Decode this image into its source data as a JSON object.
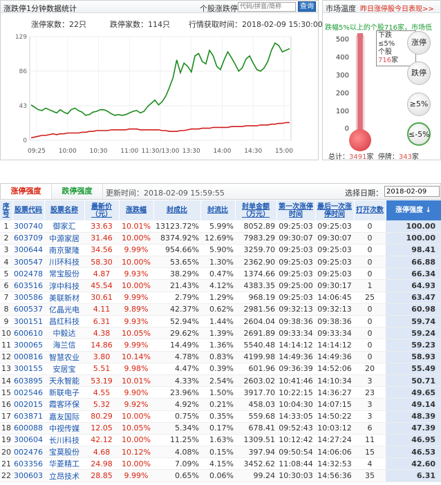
{
  "chart_panel": {
    "title": "涨跌停1分钟数据统计",
    "stock_label": "个股涨跌停",
    "search_placeholder": "代码/拼音/简称",
    "search_button": "查询"
  },
  "chart_data": {
    "type": "line",
    "legend_up_label": "涨停家数：",
    "legend_up_value": "22",
    "legend_up_unit": "只",
    "legend_down_label": "跌停家数：",
    "legend_down_value": "114",
    "legend_down_unit": "只",
    "time_label": "行情获取时间：",
    "time_value": "2018-02-09 15:30:00",
    "y_ticks": [
      "129",
      "86",
      "43",
      "0"
    ],
    "ylim": [
      0,
      129
    ],
    "x_ticks": [
      "09:25",
      "10:00",
      "10:30",
      "11:00",
      "11:30/13:00",
      "13:30",
      "14:00",
      "14:30",
      "15:00"
    ],
    "series": [
      {
        "color": "#1a8a1a",
        "values": [
          44,
          41,
          38,
          37,
          40,
          38,
          36,
          34,
          38,
          35,
          33,
          38,
          40,
          37,
          35,
          31,
          32,
          35,
          36,
          38,
          38,
          36,
          33,
          31,
          32,
          31,
          32,
          34,
          36,
          37,
          34,
          36,
          42,
          46,
          50,
          44,
          48,
          55,
          66,
          78,
          100,
          84,
          96,
          92,
          85,
          105,
          108,
          98,
          95,
          112,
          105,
          92,
          88,
          100,
          110,
          103,
          95,
          86,
          90,
          101,
          105,
          96,
          88,
          86,
          90,
          98,
          112,
          121,
          118,
          110,
          112,
          114
        ]
      },
      {
        "color": "#d11a1a",
        "values": [
          3,
          4,
          5,
          6,
          6,
          7,
          8,
          7,
          8,
          8,
          9,
          9,
          9,
          9,
          10,
          10,
          11,
          11,
          12,
          12,
          12,
          12,
          13,
          13,
          13,
          13,
          13,
          14,
          14,
          14,
          13,
          13,
          13,
          13,
          13,
          13,
          12,
          12,
          11,
          11,
          11,
          12,
          12,
          13,
          14,
          14,
          14,
          15,
          15,
          15,
          16,
          16,
          16,
          16,
          16,
          17,
          17,
          17,
          17,
          18,
          18,
          18,
          18,
          19,
          19,
          19,
          20,
          20,
          21,
          21,
          22,
          22
        ]
      }
    ]
  },
  "temp_panel": {
    "title": "市场温度",
    "link": "昨日涨停股今日表现>>",
    "headline": "跌幅5%以上的个股716家，市场低",
    "ticks": [
      "500",
      "400",
      "300",
      "200",
      "100",
      "0"
    ],
    "fill_value": 716,
    "max_value": 500,
    "callout_l1": "下跌",
    "callout_l2": "≤5%",
    "callout_l3": "个股",
    "callout_num": "716",
    "callout_unit": "家",
    "btn_up": "涨停",
    "btn_down": "跌停",
    "btn_gt5": "≥5%",
    "btn_le5": "≤-5%",
    "total_label": "总计：",
    "total_value": "3491",
    "total_unit": "家",
    "halt_label": "停牌：",
    "halt_value": "343",
    "halt_unit": "家"
  },
  "table_panel": {
    "tab_up": "涨停强度",
    "tab_down": "跌停强度",
    "update_label": "更新时间：2018-02-09 15:59:55",
    "date_label": "选择日期：",
    "date_value": "2018-02-09",
    "headers": [
      "序号",
      "股票代码",
      "股票名称",
      "最新价（元）",
      "涨跌幅",
      "封成比",
      "封流比",
      "封单金额（万元）",
      "第一次涨停时间",
      "最后一次涨停时间",
      "打开次数",
      "涨停强度 ↓"
    ],
    "rows": [
      [
        "1",
        "300740",
        "御家汇",
        "33.63",
        "10.01%",
        "13123.72%",
        "5.99%",
        "8052.89",
        "09:25:03",
        "09:25:03",
        "0",
        "100.00"
      ],
      [
        "2",
        "603709",
        "中源家居",
        "31.46",
        "10.00%",
        "8374.92%",
        "12.69%",
        "7983.29",
        "09:30:07",
        "09:30:07",
        "0",
        "100.00"
      ],
      [
        "3",
        "300644",
        "南京聚隆",
        "34.56",
        "9.99%",
        "954.66%",
        "5.90%",
        "3259.70",
        "09:25:03",
        "09:25:03",
        "0",
        "98.41"
      ],
      [
        "4",
        "300547",
        "川环科技",
        "58.30",
        "10.00%",
        "53.65%",
        "1.30%",
        "2362.90",
        "09:25:03",
        "09:25:03",
        "0",
        "66.88"
      ],
      [
        "5",
        "002478",
        "常宝股份",
        "4.87",
        "9.93%",
        "38.29%",
        "0.47%",
        "1374.66",
        "09:25:03",
        "09:25:03",
        "0",
        "66.34"
      ],
      [
        "6",
        "603516",
        "淳中科技",
        "45.54",
        "10.00%",
        "21.43%",
        "4.12%",
        "4383.35",
        "09:25:00",
        "09:30:17",
        "1",
        "64.93"
      ],
      [
        "7",
        "300586",
        "美联新材",
        "30.61",
        "9.99%",
        "2.79%",
        "1.29%",
        "968.19",
        "09:25:03",
        "14:06:45",
        "25",
        "63.47"
      ],
      [
        "8",
        "600537",
        "亿晶光电",
        "4.11",
        "9.89%",
        "42.37%",
        "0.62%",
        "2981.56",
        "09:32:13",
        "09:32:13",
        "0",
        "60.98"
      ],
      [
        "9",
        "300151",
        "昌红科技",
        "6.31",
        "9.93%",
        "52.94%",
        "1.44%",
        "2604.04",
        "09:38:36",
        "09:38:36",
        "0",
        "59.74"
      ],
      [
        "10",
        "600610",
        "中毅达",
        "4.38",
        "10.05%",
        "29.62%",
        "1.39%",
        "2691.89",
        "09:33:34",
        "09:33:34",
        "0",
        "59.24"
      ],
      [
        "11",
        "300065",
        "海兰信",
        "14.86",
        "9.99%",
        "14.49%",
        "1.36%",
        "5540.48",
        "14:14:12",
        "14:14:12",
        "0",
        "59.23"
      ],
      [
        "12",
        "000816",
        "智慧农业",
        "3.80",
        "10.14%",
        "4.78%",
        "0.83%",
        "4199.98",
        "14:49:36",
        "14:49:36",
        "0",
        "58.93"
      ],
      [
        "13",
        "300155",
        "安居宝",
        "5.51",
        "9.98%",
        "4.47%",
        "0.39%",
        "601.96",
        "09:36:39",
        "14:52:06",
        "20",
        "55.49"
      ],
      [
        "14",
        "603895",
        "天永智能",
        "53.19",
        "10.01%",
        "4.33%",
        "2.54%",
        "2603.02",
        "10:41:46",
        "14:10:34",
        "3",
        "50.71"
      ],
      [
        "15",
        "002546",
        "新联电子",
        "4.55",
        "9.90%",
        "23.96%",
        "1.50%",
        "3917.70",
        "10:22:15",
        "14:36:27",
        "23",
        "49.65"
      ],
      [
        "16",
        "002015",
        "霞客环保",
        "5.32",
        "9.92%",
        "4.92%",
        "0.21%",
        "458.03",
        "10:04:30",
        "14:07:15",
        "3",
        "49.14"
      ],
      [
        "17",
        "603871",
        "嘉友国际",
        "80.29",
        "10.00%",
        "0.75%",
        "0.35%",
        "559.68",
        "14:33:05",
        "14:50:22",
        "3",
        "48.39"
      ],
      [
        "18",
        "600088",
        "中视传媒",
        "12.05",
        "10.05%",
        "5.34%",
        "0.17%",
        "678.41",
        "09:52:43",
        "10:03:12",
        "6",
        "47.39"
      ],
      [
        "19",
        "300604",
        "长川科技",
        "42.12",
        "10.00%",
        "11.25%",
        "1.63%",
        "1309.51",
        "10:12:42",
        "14:27:24",
        "11",
        "46.95"
      ],
      [
        "20",
        "002476",
        "宝莫股份",
        "4.68",
        "10.12%",
        "4.08%",
        "0.15%",
        "397.94",
        "09:50:54",
        "14:06:06",
        "15",
        "46.53"
      ],
      [
        "21",
        "603356",
        "华菱精工",
        "24.98",
        "10.00%",
        "7.09%",
        "4.15%",
        "3452.62",
        "11:08:44",
        "14:32:53",
        "4",
        "42.60"
      ],
      [
        "22",
        "300603",
        "立昂技术",
        "28.85",
        "9.99%",
        "0.65%",
        "0.06%",
        "99.24",
        "10:30:03",
        "14:56:36",
        "35",
        "6.31"
      ]
    ]
  }
}
